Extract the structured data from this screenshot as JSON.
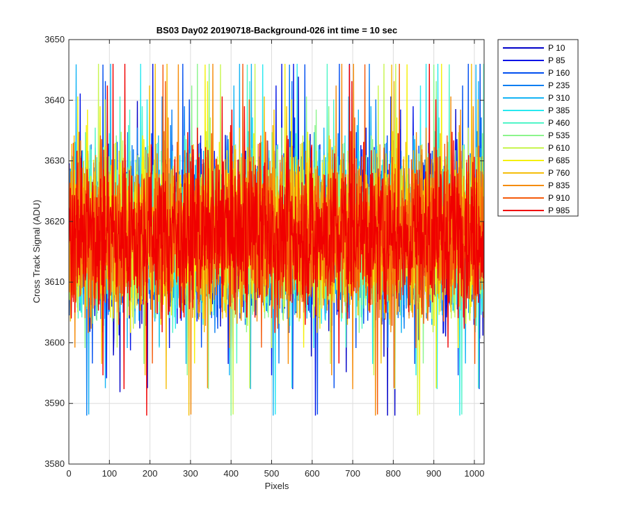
{
  "chart_data": {
    "type": "line",
    "title": "BS03 Day02 20190718-Background-026 int time = 10 sec",
    "xlabel": "Pixels",
    "ylabel": "Cross Track Signal (ADU)",
    "xlim": [
      0,
      1024
    ],
    "ylim": [
      3580,
      3650
    ],
    "xticks": [
      0,
      100,
      200,
      300,
      400,
      500,
      600,
      700,
      800,
      900,
      1000
    ],
    "yticks": [
      3580,
      3590,
      3600,
      3610,
      3620,
      3630,
      3640,
      3650
    ],
    "grid": true,
    "legend_position": "outside-top-right",
    "noise": {
      "mean": 3618,
      "typical_min": 3597,
      "typical_max": 3640,
      "extreme_min": 3588,
      "extreme_max": 3646,
      "n_points": 1024
    },
    "series": [
      {
        "name": "P 10",
        "color": "#0000c8"
      },
      {
        "name": "P 85",
        "color": "#0012e6"
      },
      {
        "name": "P 160",
        "color": "#004ef0"
      },
      {
        "name": "P 235",
        "color": "#0a7ef2"
      },
      {
        "name": "P 310",
        "color": "#14b4f5"
      },
      {
        "name": "P 385",
        "color": "#28e8f0"
      },
      {
        "name": "P 460",
        "color": "#50f5c8"
      },
      {
        "name": "P 535",
        "color": "#8cf58c"
      },
      {
        "name": "P 610",
        "color": "#c8f550"
      },
      {
        "name": "P 685",
        "color": "#f5f00a"
      },
      {
        "name": "P 760",
        "color": "#f5be0a"
      },
      {
        "name": "P 835",
        "color": "#f58c0a"
      },
      {
        "name": "P 910",
        "color": "#f55a0a"
      },
      {
        "name": "P 985",
        "color": "#f00000"
      }
    ]
  }
}
